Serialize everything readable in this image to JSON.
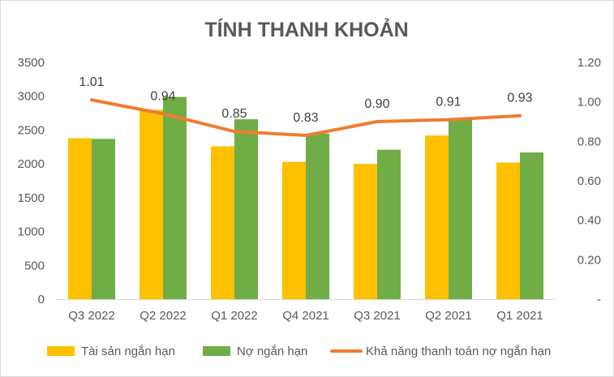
{
  "chart_data": {
    "type": "bar",
    "title": "TÍNH THANH KHOẢN",
    "categories": [
      "Q3 2022",
      "Q2 2022",
      "Q1 2022",
      "Q4 2021",
      "Q3 2021",
      "Q2 2021",
      "Q1 2021"
    ],
    "series": [
      {
        "name": "Tài sản ngắn hạn",
        "type": "bar",
        "axis": "left",
        "color": "#FFC000",
        "values": [
          2380,
          2800,
          2260,
          2030,
          2000,
          2420,
          2020
        ]
      },
      {
        "name": "Nợ ngắn hạn",
        "type": "bar",
        "axis": "left",
        "color": "#70AD47",
        "values": [
          2370,
          2990,
          2660,
          2450,
          2210,
          2650,
          2170
        ]
      },
      {
        "name": "Khả năng thanh toán nợ ngắn hạn",
        "type": "line",
        "axis": "right",
        "color": "#ED7D31",
        "values": [
          1.01,
          0.94,
          0.85,
          0.83,
          0.9,
          0.91,
          0.93
        ],
        "labels": [
          "1.01",
          "0.94",
          "0.85",
          "0.83",
          "0.90",
          "0.91",
          "0.93"
        ]
      }
    ],
    "y_left": {
      "min": 0,
      "max": 3500,
      "ticks": [
        "0",
        "500",
        "1000",
        "1500",
        "2000",
        "2500",
        "3000",
        "3500"
      ]
    },
    "y_right": {
      "min": 0,
      "max": 1.2,
      "ticks": [
        "-",
        "0.20",
        "0.40",
        "0.60",
        "0.80",
        "1.00",
        "1.20"
      ]
    },
    "grid": false,
    "legend_position": "bottom"
  }
}
